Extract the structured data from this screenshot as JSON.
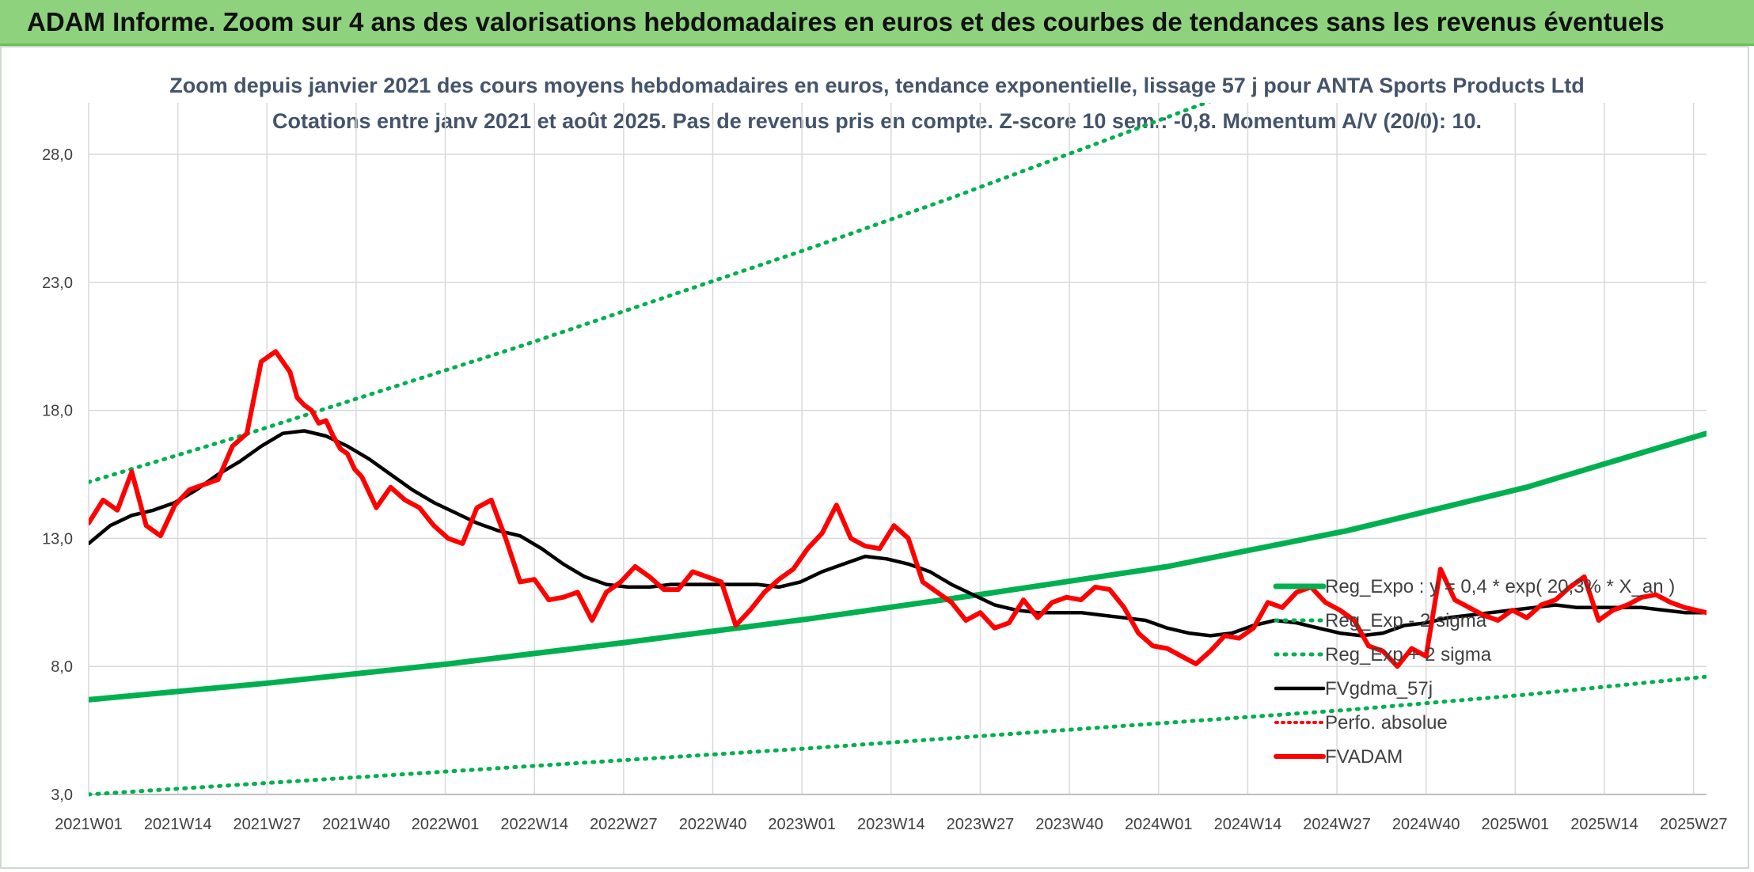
{
  "header": {
    "title": "ADAM Informe. Zoom sur 4 ans des valorisations hebdomadaires en euros et des courbes de tendances sans les revenus éventuels"
  },
  "chart_data": {
    "type": "line",
    "title": "Zoom depuis janvier 2021 des cours moyens hebdomadaires en euros, tendance exponentielle, lissage 57 j pour ANTA Sports Products Ltd",
    "subtitle": "Cotations entre janv 2021 et août 2025. Pas de revenus pris en compte. Z-score 10 sem.: -0,8. Momentum A/V (20/0): 10.",
    "xlabel": "",
    "ylabel": "",
    "ylim": [
      3.0,
      28.0
    ],
    "y_ticks": [
      "3,0",
      "8,0",
      "13,0",
      "18,0",
      "23,0",
      "28,0"
    ],
    "x_ticks": [
      "2021W01",
      "2021W14",
      "2021W27",
      "2021W40",
      "2022W01",
      "2022W14",
      "2022W27",
      "2022W40",
      "2023W01",
      "2023W14",
      "2023W27",
      "2023W40",
      "2024W01",
      "2024W14",
      "2024W27",
      "2024W40",
      "2025W01",
      "2025W14",
      "2025W27"
    ],
    "grid": true,
    "legend_position": "right",
    "series": [
      {
        "name": "Reg_Expo : y = 0,4 * exp( 20,3% * X_an )",
        "color": "#00b050",
        "style": "solid",
        "x": [
          0,
          25,
          50,
          75,
          100,
          125,
          150,
          175,
          200,
          225
        ],
        "values": [
          6.7,
          7.35,
          8.1,
          8.95,
          9.85,
          10.85,
          11.9,
          13.3,
          15.0,
          17.1
        ]
      },
      {
        "name": "Reg_Exp - 2 sigma",
        "color": "#00b050",
        "style": "dotted",
        "x": [
          0,
          25,
          50,
          75,
          100,
          125,
          150,
          175,
          200,
          225
        ],
        "values": [
          3.0,
          3.45,
          3.9,
          4.35,
          4.8,
          5.3,
          5.8,
          6.3,
          6.9,
          7.6
        ]
      },
      {
        "name": "Reg_Exp + 2 sigma",
        "color": "#00b050",
        "style": "dotted",
        "x": [
          0,
          20,
          40,
          60,
          80,
          100,
          120,
          140,
          160,
          170
        ],
        "values": [
          15.2,
          16.9,
          18.7,
          20.5,
          22.4,
          24.3,
          26.3,
          28.4,
          30.5,
          31.5
        ]
      },
      {
        "name": "FVgdma_57j",
        "color": "#000000",
        "style": "solid",
        "x": [
          0,
          3,
          6,
          9,
          12,
          15,
          18,
          21,
          24,
          27,
          30,
          33,
          36,
          39,
          42,
          45,
          48,
          51,
          54,
          57,
          60,
          63,
          66,
          69,
          72,
          75,
          78,
          81,
          84,
          87,
          90,
          93,
          96,
          99,
          102,
          105,
          108,
          111,
          114,
          117,
          120,
          123,
          126,
          129,
          132,
          135,
          138,
          141,
          144,
          147,
          150,
          153,
          156,
          159,
          162,
          165,
          168,
          171,
          174,
          177,
          180,
          183,
          186,
          189,
          192,
          195,
          198,
          201,
          204,
          207,
          210,
          213,
          216,
          219,
          222,
          225
        ],
        "values": [
          12.8,
          13.5,
          13.9,
          14.1,
          14.4,
          14.9,
          15.5,
          16.0,
          16.6,
          17.1,
          17.2,
          17.0,
          16.6,
          16.1,
          15.5,
          14.9,
          14.4,
          14.0,
          13.6,
          13.3,
          13.1,
          12.6,
          12.0,
          11.5,
          11.2,
          11.1,
          11.1,
          11.2,
          11.2,
          11.2,
          11.2,
          11.2,
          11.1,
          11.3,
          11.7,
          12.0,
          12.3,
          12.2,
          12.0,
          11.7,
          11.2,
          10.8,
          10.4,
          10.2,
          10.1,
          10.1,
          10.1,
          10.0,
          9.9,
          9.8,
          9.5,
          9.3,
          9.2,
          9.3,
          9.6,
          9.8,
          9.7,
          9.5,
          9.3,
          9.2,
          9.3,
          9.6,
          9.7,
          9.9,
          10.0,
          10.1,
          10.2,
          10.3,
          10.4,
          10.3,
          10.3,
          10.3,
          10.3,
          10.2,
          10.1,
          10.1
        ]
      },
      {
        "name": "Perfo. absolue",
        "color": "#ff0000",
        "style": "dotted",
        "x": [],
        "values": []
      },
      {
        "name": "FVADAM",
        "color": "#ff0000",
        "style": "solid",
        "x": [
          0,
          2,
          4,
          6,
          8,
          10,
          12,
          14,
          16,
          18,
          20,
          22,
          24,
          26,
          28,
          29,
          30,
          31,
          32,
          33,
          34,
          35,
          36,
          37,
          38,
          40,
          42,
          44,
          46,
          48,
          50,
          52,
          54,
          56,
          58,
          60,
          62,
          64,
          66,
          68,
          70,
          72,
          74,
          76,
          78,
          80,
          82,
          84,
          86,
          88,
          90,
          92,
          94,
          96,
          98,
          100,
          102,
          104,
          106,
          108,
          110,
          112,
          114,
          116,
          118,
          120,
          122,
          124,
          126,
          128,
          130,
          132,
          134,
          136,
          138,
          140,
          142,
          144,
          146,
          148,
          150,
          152,
          154,
          156,
          158,
          160,
          162,
          164,
          166,
          168,
          170,
          172,
          174,
          176,
          178,
          180,
          182,
          184,
          186,
          188,
          190,
          192,
          194,
          196,
          198,
          200,
          202,
          204,
          206,
          208,
          210,
          212,
          214,
          216,
          218,
          220,
          222,
          225
        ],
        "values": [
          13.6,
          14.5,
          14.1,
          15.6,
          13.5,
          13.1,
          14.3,
          14.9,
          15.1,
          15.3,
          16.6,
          17.1,
          19.9,
          20.3,
          19.5,
          18.5,
          18.2,
          18.0,
          17.5,
          17.6,
          17.0,
          16.5,
          16.3,
          15.7,
          15.4,
          14.2,
          15.0,
          14.5,
          14.2,
          13.5,
          13.0,
          12.8,
          14.2,
          14.5,
          13.0,
          11.3,
          11.4,
          10.6,
          10.7,
          10.9,
          9.8,
          10.9,
          11.3,
          11.9,
          11.5,
          11.0,
          11.0,
          11.7,
          11.5,
          11.3,
          9.6,
          10.2,
          10.9,
          11.4,
          11.8,
          12.6,
          13.2,
          14.3,
          13.0,
          12.7,
          12.6,
          13.5,
          13.0,
          11.3,
          10.9,
          10.5,
          9.8,
          10.1,
          9.5,
          9.7,
          10.6,
          9.9,
          10.5,
          10.7,
          10.6,
          11.1,
          11.0,
          10.3,
          9.3,
          8.8,
          8.7,
          8.4,
          8.1,
          8.6,
          9.2,
          9.1,
          9.5,
          10.5,
          10.3,
          10.9,
          11.1,
          10.5,
          10.2,
          9.8,
          8.8,
          8.6,
          8.0,
          8.7,
          8.4,
          11.8,
          10.6,
          10.3,
          10.0,
          9.8,
          10.2,
          9.9,
          10.4,
          10.6,
          11.1,
          11.5,
          9.8,
          10.2,
          10.4,
          10.7,
          10.8,
          10.5,
          10.3,
          10.1
        ]
      }
    ]
  }
}
